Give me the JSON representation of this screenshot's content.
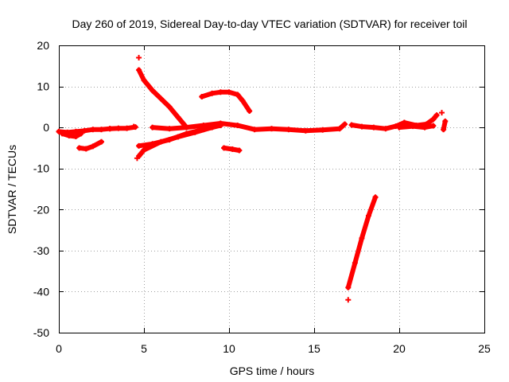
{
  "chart_data": {
    "type": "scatter",
    "title": "Day 260 of 2019, Sidereal Day-to-day VTEC variation (SDTVAR) for receiver toil",
    "xlabel": "GPS time / hours",
    "ylabel": "SDTVAR / TECUs",
    "xlim": [
      0,
      25
    ],
    "ylim": [
      -50,
      20
    ],
    "xticks": [
      "0",
      "5",
      "10",
      "15",
      "20",
      "25"
    ],
    "yticks": [
      "20",
      "10",
      "0",
      "-10",
      "-20",
      "-30",
      "-40",
      "-50"
    ],
    "grid": true,
    "marker": "+",
    "color": "#ff0000",
    "series": [
      {
        "segments": [
          [
            [
              0.0,
              -1.0
            ],
            [
              0.5,
              -1.2
            ],
            [
              1.0,
              -1.0
            ],
            [
              1.5,
              -0.8
            ],
            [
              2.0,
              -0.5
            ],
            [
              2.5,
              -0.5
            ],
            [
              3.0,
              -0.3
            ],
            [
              3.5,
              -0.2
            ],
            [
              4.0,
              -0.2
            ],
            [
              4.5,
              0.1
            ]
          ],
          [
            [
              0.2,
              -1.5
            ],
            [
              0.6,
              -2.0
            ],
            [
              1.0,
              -2.2
            ],
            [
              1.3,
              -1.5
            ]
          ],
          [
            [
              1.2,
              -5.0
            ],
            [
              1.6,
              -5.2
            ],
            [
              2.0,
              -4.6
            ],
            [
              2.5,
              -3.5
            ]
          ],
          [
            [
              4.7,
              14.0
            ],
            [
              5.0,
              11.5
            ],
            [
              5.5,
              9.0
            ],
            [
              6.0,
              7.0
            ],
            [
              6.5,
              5.0
            ],
            [
              7.0,
              2.5
            ],
            [
              7.4,
              0.5
            ]
          ],
          [
            [
              4.7,
              -7.0
            ],
            [
              5.0,
              -5.5
            ],
            [
              6.0,
              -3.5
            ],
            [
              7.0,
              -2.3
            ],
            [
              8.0,
              -1.2
            ],
            [
              9.0,
              0.0
            ],
            [
              9.6,
              0.8
            ]
          ],
          [
            [
              4.7,
              -4.5
            ],
            [
              5.5,
              -4.0
            ],
            [
              6.5,
              -3.0
            ],
            [
              7.5,
              -1.5
            ],
            [
              8.5,
              -0.5
            ],
            [
              9.5,
              0.5
            ]
          ],
          [
            [
              5.5,
              0.0
            ],
            [
              6.5,
              -0.3
            ],
            [
              7.5,
              0.0
            ],
            [
              8.5,
              0.5
            ],
            [
              9.5,
              1.0
            ],
            [
              10.5,
              0.5
            ],
            [
              11.5,
              -0.5
            ],
            [
              12.5,
              -0.3
            ],
            [
              13.5,
              -0.5
            ],
            [
              14.5,
              -0.8
            ],
            [
              15.5,
              -0.6
            ],
            [
              16.5,
              -0.3
            ],
            [
              16.8,
              0.8
            ]
          ],
          [
            [
              8.4,
              7.5
            ],
            [
              9.0,
              8.3
            ],
            [
              9.5,
              8.6
            ],
            [
              10.0,
              8.6
            ],
            [
              10.5,
              8.0
            ],
            [
              10.8,
              6.5
            ],
            [
              11.2,
              4.0
            ]
          ],
          [
            [
              9.7,
              -5.0
            ],
            [
              10.2,
              -5.3
            ],
            [
              10.6,
              -5.6
            ]
          ],
          [
            [
              17.0,
              -39.0
            ],
            [
              17.4,
              -33.0
            ],
            [
              17.8,
              -27.0
            ],
            [
              18.2,
              -21.5
            ],
            [
              18.6,
              -17.0
            ]
          ],
          [
            [
              17.2,
              0.6
            ],
            [
              17.8,
              0.2
            ],
            [
              18.5,
              0.0
            ],
            [
              19.2,
              -0.3
            ],
            [
              19.8,
              0.3
            ],
            [
              20.3,
              1.2
            ],
            [
              21.0,
              0.5
            ],
            [
              21.6,
              0.8
            ],
            [
              22.0,
              2.0
            ],
            [
              22.2,
              3.0
            ]
          ],
          [
            [
              20.0,
              0.0
            ],
            [
              20.8,
              0.3
            ],
            [
              21.5,
              0.0
            ],
            [
              22.0,
              0.4
            ]
          ],
          [
            [
              22.6,
              -0.5
            ],
            [
              22.7,
              1.5
            ]
          ]
        ],
        "points": [
          [
            4.7,
            17.0
          ],
          [
            17.0,
            -42.0
          ],
          [
            22.5,
            3.6
          ],
          [
            4.6,
            -7.5
          ],
          [
            3.0,
            -0.3
          ],
          [
            4.4,
            0.2
          ]
        ]
      }
    ]
  }
}
